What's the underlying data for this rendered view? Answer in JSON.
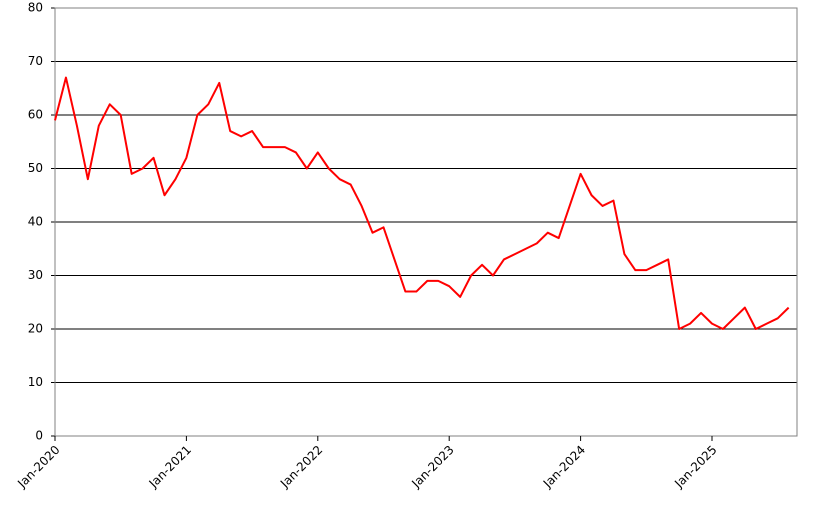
{
  "chart_data": {
    "type": "line",
    "x": [
      "Jan-2020",
      "Feb-2020",
      "Mar-2020",
      "Apr-2020",
      "May-2020",
      "Jun-2020",
      "Jul-2020",
      "Aug-2020",
      "Sep-2020",
      "Oct-2020",
      "Nov-2020",
      "Dec-2020",
      "Jan-2021",
      "Feb-2021",
      "Mar-2021",
      "Apr-2021",
      "May-2021",
      "Jun-2021",
      "Jul-2021",
      "Aug-2021",
      "Sep-2021",
      "Oct-2021",
      "Nov-2021",
      "Dec-2021",
      "Jan-2022",
      "Feb-2022",
      "Mar-2022",
      "Apr-2022",
      "May-2022",
      "Jun-2022",
      "Jul-2022",
      "Aug-2022",
      "Sep-2022",
      "Oct-2022",
      "Nov-2022",
      "Dec-2022",
      "Jan-2023",
      "Feb-2023",
      "Mar-2023",
      "Apr-2023",
      "May-2023",
      "Jun-2023",
      "Jul-2023",
      "Aug-2023",
      "Sep-2023",
      "Oct-2023",
      "Nov-2023",
      "Dec-2023",
      "Jan-2024",
      "Feb-2024",
      "Mar-2024",
      "Apr-2024",
      "May-2024",
      "Jun-2024",
      "Jul-2024",
      "Aug-2024",
      "Sep-2024",
      "Oct-2024",
      "Nov-2024",
      "Dec-2024",
      "Jan-2025",
      "Feb-2025",
      "Mar-2025",
      "Apr-2025",
      "May-2025",
      "Jun-2025",
      "Jul-2025",
      "Aug-2025"
    ],
    "series": [
      {
        "color": "#ff0000",
        "values": [
          59,
          67,
          58,
          48,
          58,
          62,
          60,
          49,
          50,
          52,
          45,
          48,
          52,
          60,
          62,
          66,
          57,
          56,
          57,
          54,
          54,
          54,
          53,
          50,
          53,
          50,
          48,
          47,
          43,
          38,
          39,
          33,
          27,
          27,
          29,
          29,
          28,
          26,
          30,
          32,
          30,
          33,
          34,
          35,
          36,
          38,
          37,
          43,
          49,
          45,
          43,
          44,
          34,
          31,
          31,
          32,
          33,
          20,
          21,
          23,
          21,
          20,
          22,
          24,
          20,
          21,
          22,
          24
        ]
      }
    ],
    "ylim": [
      0,
      80
    ],
    "yticks": [
      0,
      10,
      20,
      30,
      40,
      50,
      60,
      70,
      80
    ],
    "xticks": [
      "Jan-2020",
      "Jan-2021",
      "Jan-2022",
      "Jan-2023",
      "Jan-2024",
      "Jan-2025"
    ],
    "grid": true
  }
}
